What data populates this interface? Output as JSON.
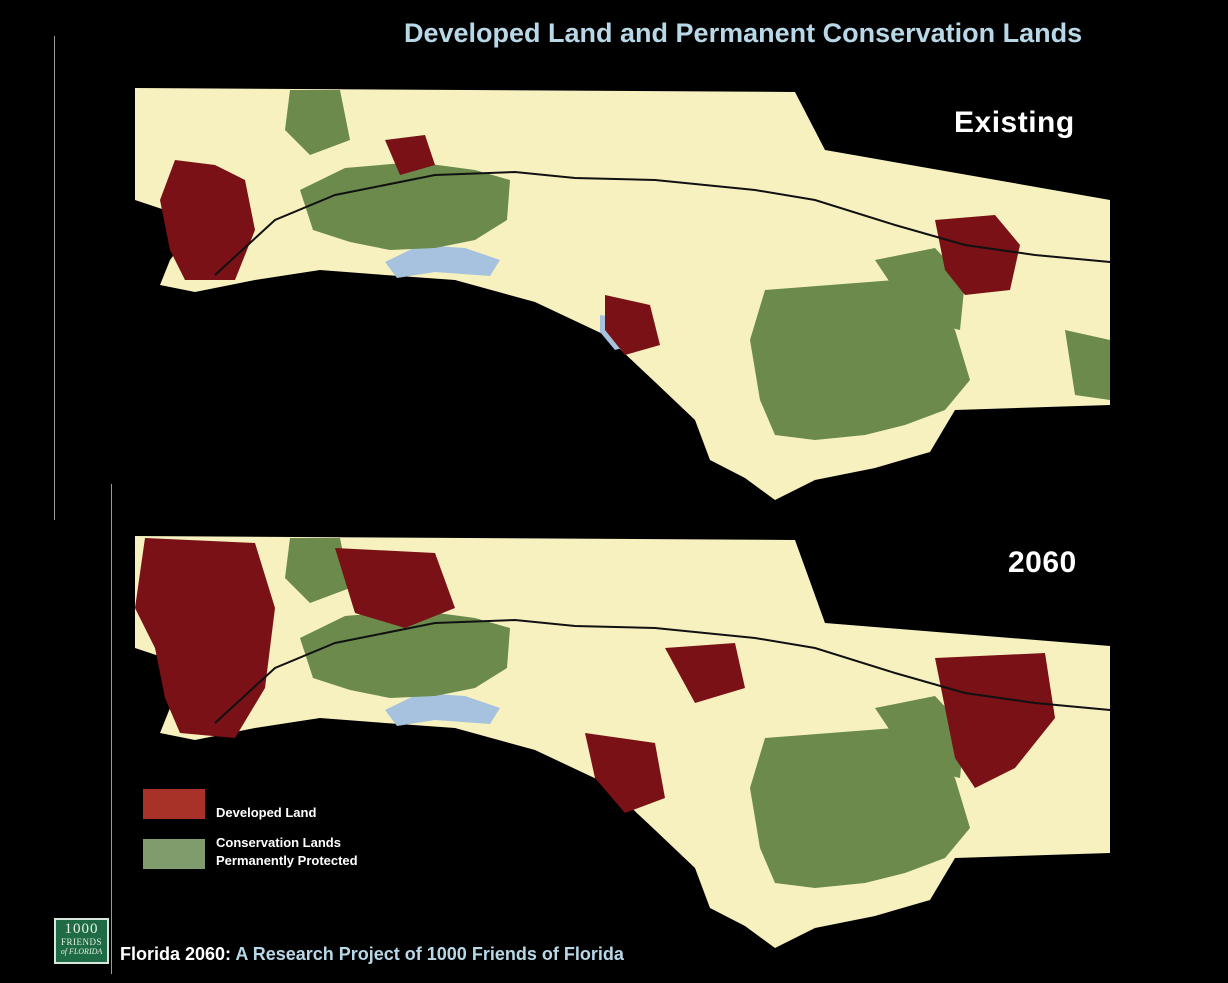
{
  "title": "Developed Land and Permanent Conservation Lands",
  "maps": {
    "existing": {
      "label": "Existing"
    },
    "future": {
      "label": "2060"
    }
  },
  "legend": {
    "developed": {
      "label": "Developed Land",
      "color": "#a83228"
    },
    "conservation": {
      "label_line1": "Conservation Lands",
      "label_line2": "Permanently Protected",
      "color": "#809b6c"
    }
  },
  "colors": {
    "land": "#f7f1c0",
    "water": "#a7c2de",
    "developed": "#7a1116",
    "conservation": "#6b8a4b",
    "title": "#b8d8e8"
  },
  "footer": {
    "lead": "Florida 2060:",
    "sub": " A Research Project of 1000 Friends of Florida"
  },
  "logo": {
    "line1": "1000",
    "line2": "FRIENDS",
    "line3": "of FLORIDA"
  }
}
